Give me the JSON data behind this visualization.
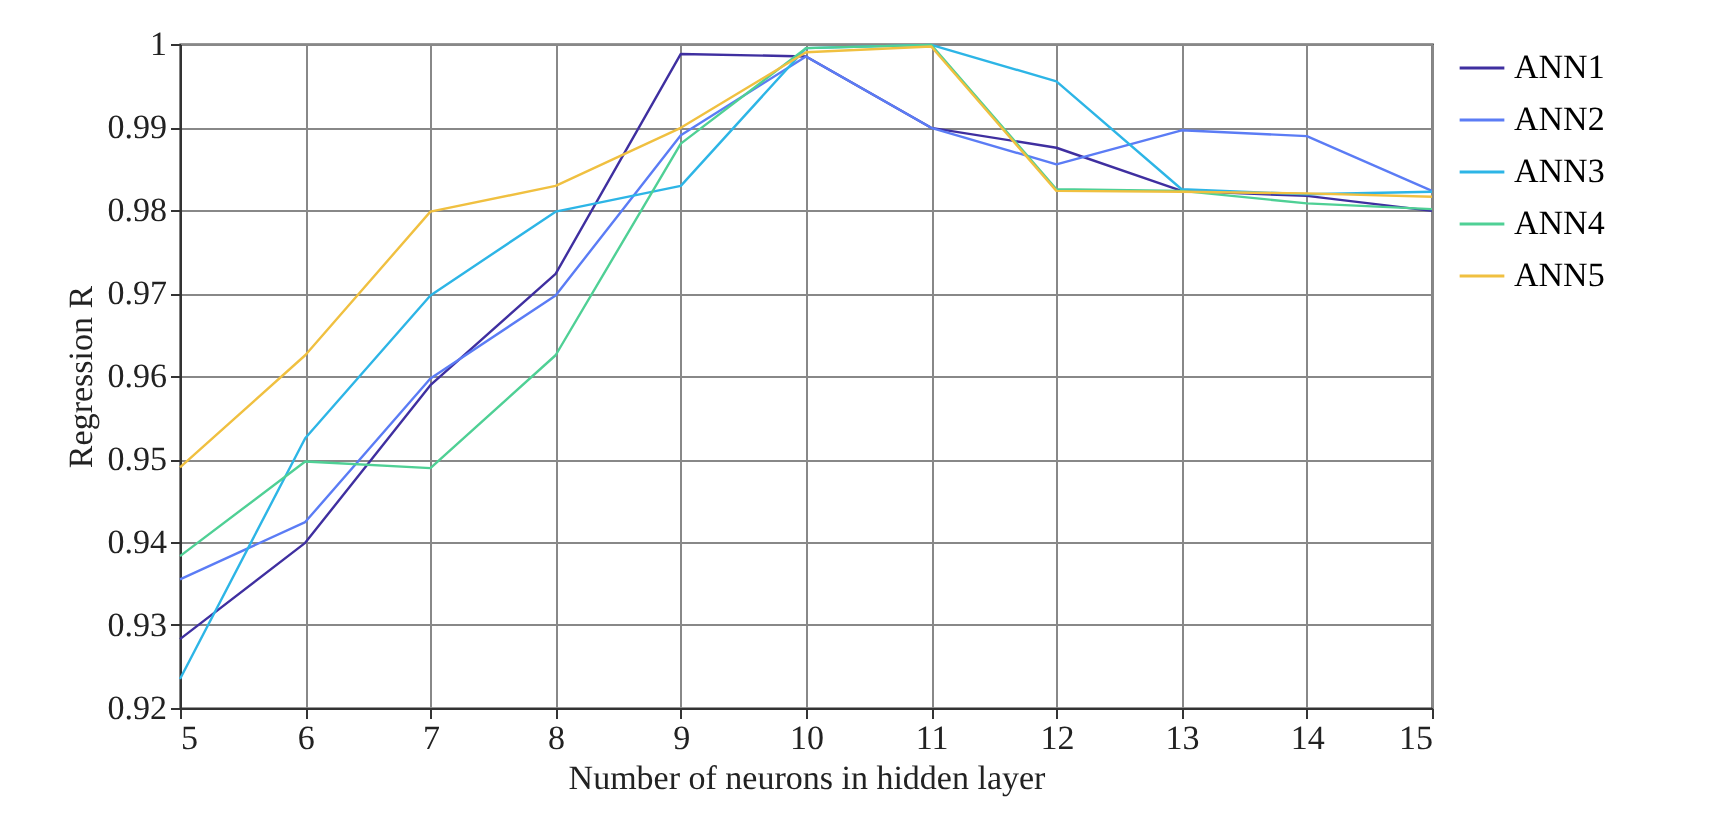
{
  "chart_data": {
    "type": "line",
    "xlabel": "Number of neurons in hidden layer",
    "ylabel": "Regression R",
    "x": [
      5,
      6,
      7,
      8,
      9,
      10,
      11,
      12,
      13,
      14,
      15
    ],
    "series": [
      {
        "name": "ANN1",
        "color": "#3f2fa0",
        "values": [
          0.9283,
          0.9399,
          0.9589,
          0.9723,
          0.9988,
          0.9985,
          0.9899,
          0.9875,
          0.9823,
          0.9817,
          0.9799
        ]
      },
      {
        "name": "ANN2",
        "color": "#5b7cf5",
        "values": [
          0.9355,
          0.9424,
          0.9597,
          0.9697,
          0.989,
          0.9985,
          0.9899,
          0.9855,
          0.9896,
          0.9889,
          0.9823
        ]
      },
      {
        "name": "ANN3",
        "color": "#2db5e6",
        "values": [
          0.9235,
          0.9525,
          0.9697,
          0.9798,
          0.9829,
          0.9995,
          0.9999,
          0.9955,
          0.9825,
          0.9819,
          0.9822
        ]
      },
      {
        "name": "ANN4",
        "color": "#4fd095",
        "values": [
          0.9383,
          0.9497,
          0.9489,
          0.9625,
          0.988,
          0.9995,
          0.9999,
          0.9825,
          0.9823,
          0.9808,
          0.9801
        ]
      },
      {
        "name": "ANN5",
        "color": "#f0c040",
        "values": [
          0.949,
          0.9625,
          0.9798,
          0.9829,
          0.9899,
          0.999,
          0.9997,
          0.9823,
          0.9822,
          0.982,
          0.9816
        ]
      }
    ],
    "xlim": [
      5,
      15
    ],
    "xticks": [
      5,
      6,
      7,
      8,
      9,
      10,
      11,
      12,
      13,
      14,
      15
    ],
    "ylim": [
      0.92,
      1
    ],
    "yticks": [
      0.92,
      0.93,
      0.94,
      0.95,
      0.96,
      0.97,
      0.98,
      0.99,
      1
    ],
    "grid": true,
    "legend": "right",
    "marker": "none",
    "line_style": "solid"
  }
}
